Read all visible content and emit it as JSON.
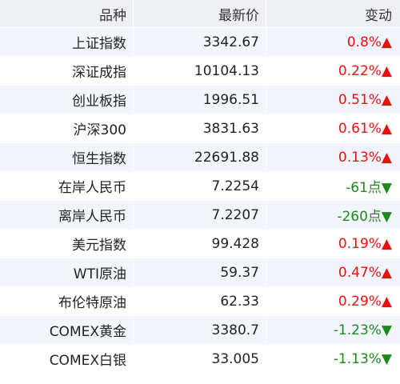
{
  "table": {
    "header": [
      "品种",
      "最新价",
      "变动"
    ],
    "rows": [
      {
        "name": "上证指数",
        "price": "3342.67",
        "change": "0.8%▲",
        "color": "#e8110f"
      },
      {
        "name": "深证成指",
        "price": "10104.13",
        "change": "0.22%▲",
        "color": "#e8110f"
      },
      {
        "name": "创业板指",
        "price": "1996.51",
        "change": "0.51%▲",
        "color": "#e8110f"
      },
      {
        "name": "沪深300",
        "price": "3831.63",
        "change": "0.61%▲",
        "color": "#e8110f"
      },
      {
        "name": "恒生指数",
        "price": "22691.88",
        "change": "0.13%▲",
        "color": "#e8110f"
      },
      {
        "name": "在岸人民币",
        "price": "7.2254",
        "change": "-61点▼",
        "color": "#1b8a1b"
      },
      {
        "name": "离岸人民币",
        "price": "7.2207",
        "change": "-260点▼",
        "color": "#1b8a1b"
      },
      {
        "name": "美元指数",
        "price": "99.428",
        "change": "0.19%▲",
        "color": "#e8110f"
      },
      {
        "name": "WTI原油",
        "price": "59.37",
        "change": "0.47%▲",
        "color": "#e8110f"
      },
      {
        "name": "布伦特原油",
        "price": "62.33",
        "change": "0.29%▲",
        "color": "#e8110f"
      },
      {
        "name": "COMEX黄金",
        "price": "3380.7",
        "change": "-1.23%▼",
        "color": "#1b8a1b"
      },
      {
        "name": "COMEX白银",
        "price": "33.005",
        "change": "-1.13%▼",
        "color": "#1b8a1b"
      }
    ]
  }
}
